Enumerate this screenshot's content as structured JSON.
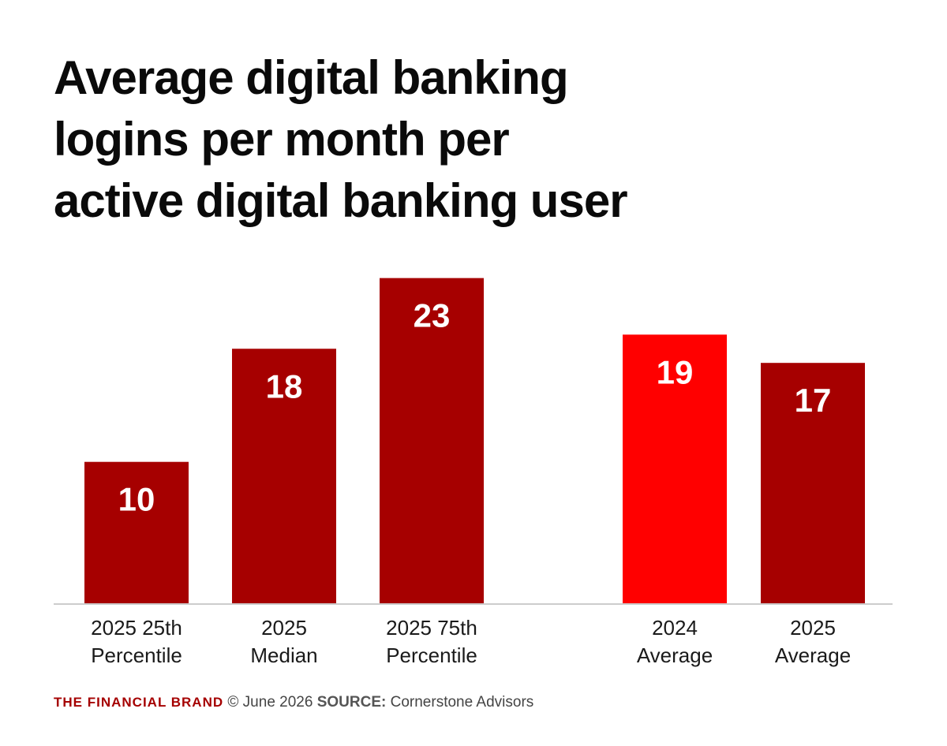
{
  "title_lines": [
    "Average digital banking",
    "logins per month per",
    "active digital banking user"
  ],
  "footer": {
    "brand": "THE FINANCIAL BRAND",
    "date": "© June 2026",
    "source_label": "SOURCE:",
    "source": "Cornerstone Advisors"
  },
  "colors": {
    "dark_bar": "#a60000",
    "highlight_bar": "#ff0000",
    "axis": "#cccccc"
  },
  "chart_data": {
    "type": "bar",
    "title": "Average digital banking logins per month per active digital banking user",
    "categories": [
      [
        "2025 25th",
        "Percentile"
      ],
      [
        "2025",
        "Median"
      ],
      [
        "2025 75th",
        "Percentile"
      ],
      [
        "2024",
        "Average"
      ],
      [
        "2025",
        "Average"
      ]
    ],
    "values": [
      10,
      18,
      23,
      19,
      17
    ],
    "data_labels": [
      "10",
      "18",
      "23",
      "19",
      "17"
    ],
    "bar_colors": [
      "#a60000",
      "#a60000",
      "#a60000",
      "#ff0000",
      "#a60000"
    ],
    "xlabel": "",
    "ylabel": "",
    "ylim": [
      0,
      25
    ],
    "grid": false,
    "legend": "none"
  }
}
